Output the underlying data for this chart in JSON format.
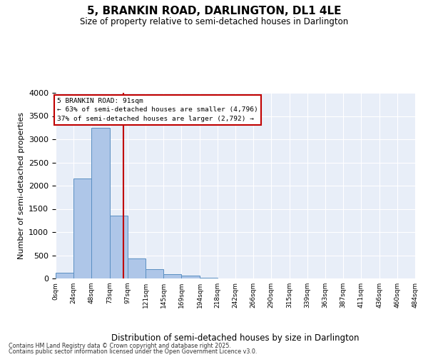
{
  "title_line1": "5, BRANKIN ROAD, DARLINGTON, DL1 4LE",
  "title_line2": "Size of property relative to semi-detached houses in Darlington",
  "xlabel": "Distribution of semi-detached houses by size in Darlington",
  "ylabel": "Number of semi-detached properties",
  "property_size": 91,
  "property_label": "5 BRANKIN ROAD: 91sqm",
  "pct_smaller": 63,
  "pct_larger": 37,
  "count_smaller": 4796,
  "count_larger": 2792,
  "bin_edges": [
    0,
    24,
    48,
    73,
    97,
    121,
    145,
    169,
    194,
    218,
    242,
    266,
    290,
    315,
    339,
    363,
    387,
    411,
    436,
    460,
    484
  ],
  "bin_labels": [
    "0sqm",
    "24sqm",
    "48sqm",
    "73sqm",
    "97sqm",
    "121sqm",
    "145sqm",
    "169sqm",
    "194sqm",
    "218sqm",
    "242sqm",
    "266sqm",
    "290sqm",
    "315sqm",
    "339sqm",
    "363sqm",
    "387sqm",
    "411sqm",
    "436sqm",
    "460sqm",
    "484sqm"
  ],
  "bar_heights": [
    130,
    2150,
    3250,
    1350,
    430,
    200,
    100,
    60,
    20,
    0,
    0,
    0,
    0,
    0,
    0,
    0,
    0,
    0,
    0,
    0
  ],
  "bar_color": "#aec6e8",
  "bar_edgecolor": "#5a8fc2",
  "vline_color": "#c00000",
  "vline_x": 91,
  "ylim": [
    0,
    4000
  ],
  "yticks": [
    0,
    500,
    1000,
    1500,
    2000,
    2500,
    3000,
    3500,
    4000
  ],
  "bg_color": "#e8eef8",
  "grid_color": "#ffffff",
  "footer_line1": "Contains HM Land Registry data © Crown copyright and database right 2025.",
  "footer_line2": "Contains public sector information licensed under the Open Government Licence v3.0.",
  "annotation_box_color": "#c00000",
  "figsize": [
    6.0,
    5.0
  ],
  "dpi": 100
}
